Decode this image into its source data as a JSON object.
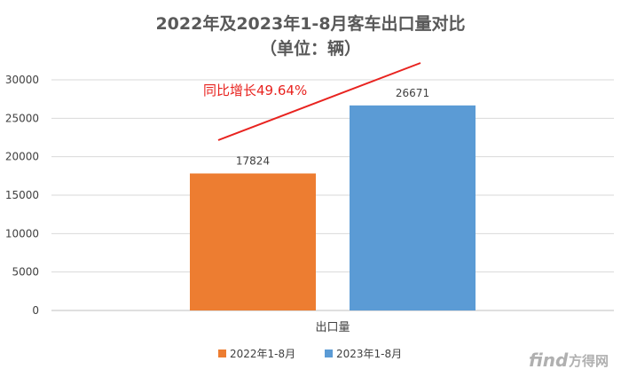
{
  "chart_data": {
    "type": "bar",
    "title": "2022年及2023年1-8月客车出口量对比",
    "subtitle": "（单位：辆）",
    "categories": [
      "出口量"
    ],
    "series": [
      {
        "name": "2022年1-8月",
        "values": [
          17824
        ],
        "color": "#ed7d31"
      },
      {
        "name": "2023年1-8月",
        "values": [
          26671
        ],
        "color": "#5b9bd5"
      }
    ],
    "ylim": [
      0,
      30000
    ],
    "yticks": [
      0,
      5000,
      10000,
      15000,
      20000,
      25000,
      30000
    ],
    "grid": true,
    "legend": "bottom",
    "data_labels": [
      "17824",
      "26671"
    ],
    "annotation": "同比增长49.64%",
    "annotation_color": "#e8231f"
  },
  "watermark": {
    "latin": "find",
    "chinese": "方得网"
  }
}
